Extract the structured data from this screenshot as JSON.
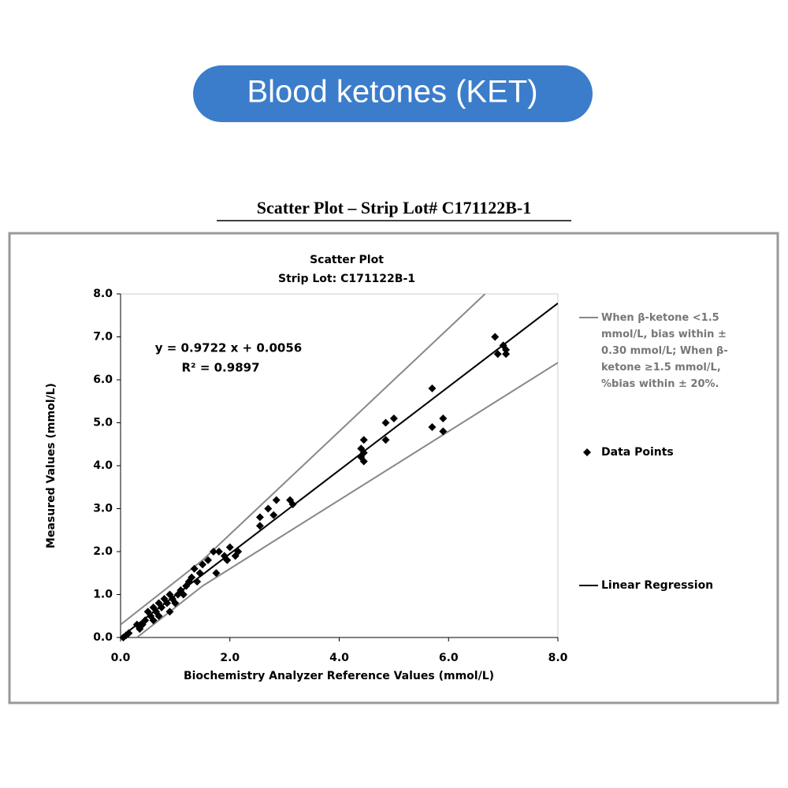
{
  "header": {
    "title": "Blood ketones (KET)"
  },
  "chart_data": {
    "type": "scatter",
    "heading": "Scatter Plot – Strip Lot# C171122B-1",
    "title": "Scatter Plot",
    "subtitle": "Strip Lot: C171122B-1",
    "xlabel": "Biochemistry Analyzer Reference Values (mmol/L)",
    "ylabel": "Measured Values (mmol/L)",
    "annotations": [
      "y = 0.9722 x + 0.0056",
      "R² = 0.9897"
    ],
    "xlim": [
      0,
      8
    ],
    "ylim": [
      0,
      8
    ],
    "xticks": [
      {
        "value": 0,
        "label": "0.0"
      },
      {
        "value": 2,
        "label": "2.0"
      },
      {
        "value": 4,
        "label": "4.0"
      },
      {
        "value": 6,
        "label": "6.0"
      },
      {
        "value": 8,
        "label": "8.0"
      }
    ],
    "yticks": [
      {
        "value": 0,
        "label": "0.0"
      },
      {
        "value": 1,
        "label": "1.0"
      },
      {
        "value": 2,
        "label": "2.0"
      },
      {
        "value": 3,
        "label": "3.0"
      },
      {
        "value": 4,
        "label": "4.0"
      },
      {
        "value": 5,
        "label": "5.0"
      },
      {
        "value": 6,
        "label": "6.0"
      },
      {
        "value": 7,
        "label": "7.0"
      },
      {
        "value": 8,
        "label": "8.0"
      }
    ],
    "legend": "right",
    "series": [
      {
        "name": "When β-ketone <1.5 mmol/L, bias within ± 0.30 mmol/L; When β-ketone ≥1.5 mmol/L, %bias within ± 20%.",
        "kind": "line",
        "color": "#888888",
        "x": [
          0,
          1.5,
          6.667,
          null,
          0.3,
          1.5,
          8
        ],
        "values": [
          0.3,
          1.8,
          8,
          null,
          0,
          1.2,
          6.4
        ]
      },
      {
        "name": "Data Points",
        "kind": "points",
        "color": "#000000",
        "x": [
          6.85,
          6.9,
          7.0,
          7.05,
          7.05,
          5.7,
          5.7,
          5.9,
          5.9,
          4.85,
          5.0,
          4.85,
          4.45,
          4.4,
          4.4,
          4.45,
          4.45,
          3.1,
          3.15,
          2.85,
          2.8,
          2.7,
          2.55,
          2.55,
          2.15,
          2.0,
          1.9,
          1.8,
          1.7,
          1.75,
          1.6,
          1.5,
          1.45,
          1.35,
          1.3,
          1.25,
          1.2,
          1.1,
          1.05,
          0.95,
          0.9,
          0.85,
          0.8,
          0.75,
          0.7,
          0.65,
          0.6,
          0.55,
          0.5,
          0.45,
          0.4,
          0.35,
          0.3,
          0.1,
          0.15,
          0.05,
          1.0,
          0.9,
          0.7,
          0.6,
          1.15,
          1.4,
          2.1,
          1.95
        ],
        "values": [
          7.0,
          6.6,
          6.8,
          6.7,
          6.6,
          5.8,
          4.9,
          5.1,
          4.8,
          5.0,
          5.1,
          4.6,
          4.6,
          4.4,
          4.2,
          4.1,
          4.3,
          3.2,
          3.1,
          3.2,
          2.85,
          3.0,
          2.8,
          2.6,
          2.0,
          2.1,
          1.9,
          2.0,
          2.0,
          1.5,
          1.8,
          1.7,
          1.5,
          1.6,
          1.4,
          1.3,
          1.2,
          1.1,
          1.0,
          0.9,
          1.0,
          0.8,
          0.9,
          0.7,
          0.8,
          0.6,
          0.7,
          0.5,
          0.6,
          0.4,
          0.3,
          0.2,
          0.3,
          0.05,
          0.1,
          0.0,
          0.8,
          0.6,
          0.5,
          0.4,
          1.0,
          1.3,
          1.9,
          1.8
        ]
      },
      {
        "name": "Linear Regression",
        "kind": "line",
        "color": "#000000",
        "x": [
          0,
          8
        ],
        "values": [
          0.0056,
          7.7832
        ]
      }
    ]
  }
}
